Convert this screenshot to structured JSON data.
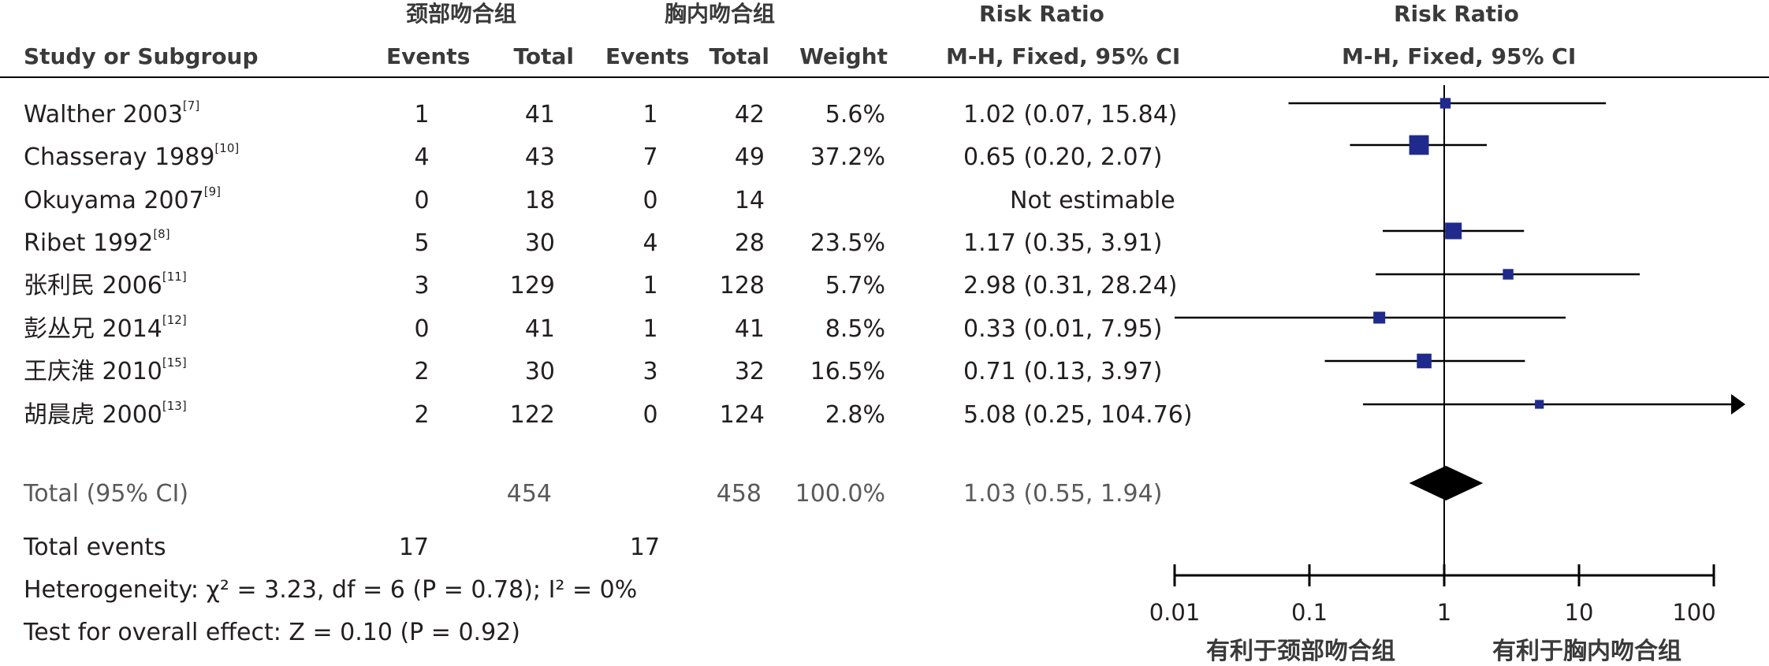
{
  "headers": {
    "group_neck": "颈部吻合组",
    "group_chest": "胸内吻合组",
    "risk_ratio_left": "Risk Ratio",
    "risk_ratio_right": "Risk Ratio",
    "study_col": "Study or Subgroup",
    "events1": "Events",
    "total1": "Total",
    "events2": "Events",
    "total2": "Total",
    "weight": "Weight",
    "method_left": "M-H, Fixed, 95% CI",
    "method_right": "M-H, Fixed, 95% CI"
  },
  "studies": [
    {
      "name": "Walther 2003",
      "ref": "[7]",
      "e1": "1",
      "t1": "41",
      "e2": "1",
      "t2": "42",
      "weight": "5.6%",
      "rr": "1.02 (0.07, 15.84)"
    },
    {
      "name": "Chasseray 1989",
      "ref": "[10]",
      "e1": "4",
      "t1": "43",
      "e2": "7",
      "t2": "49",
      "weight": "37.2%",
      "rr": "0.65 (0.20, 2.07)"
    },
    {
      "name": "Okuyama 2007",
      "ref": "[9]",
      "e1": "0",
      "t1": "18",
      "e2": "0",
      "t2": "14",
      "weight": "",
      "rr": "Not estimable"
    },
    {
      "name": "Ribet 1992",
      "ref": "[8]",
      "e1": "5",
      "t1": "30",
      "e2": "4",
      "t2": "28",
      "weight": "23.5%",
      "rr": "1.17 (0.35, 3.91)"
    },
    {
      "name": "张利民 2006",
      "ref": "[11]",
      "e1": "3",
      "t1": "129",
      "e2": "1",
      "t2": "128",
      "weight": "5.7%",
      "rr": "2.98 (0.31, 28.24)"
    },
    {
      "name": "彭丛兄 2014",
      "ref": "[12]",
      "e1": "0",
      "t1": "41",
      "e2": "1",
      "t2": "41",
      "weight": "8.5%",
      "rr": "0.33 (0.01, 7.95)"
    },
    {
      "name": "王庆淮 2010",
      "ref": "[15]",
      "e1": "2",
      "t1": "30",
      "e2": "3",
      "t2": "32",
      "weight": "16.5%",
      "rr": "0.71 (0.13, 3.97)"
    },
    {
      "name": "胡晨虎 2000",
      "ref": "[13]",
      "e1": "2",
      "t1": "122",
      "e2": "0",
      "t2": "124",
      "weight": "2.8%",
      "rr": "5.08 (0.25, 104.76)"
    }
  ],
  "total": {
    "label": "Total (95% CI)",
    "t1": "454",
    "t2": "458",
    "weight": "100.0%",
    "rr": "1.03 (0.55, 1.94)"
  },
  "total_events": {
    "label": "Total events",
    "e1": "17",
    "e2": "17"
  },
  "heterogeneity": "Heterogeneity: χ² = 3.23, df = 6 (P = 0.78); I² = 0%",
  "overall_effect": "Test for overall effect: Z = 0.10 (P = 0.92)",
  "axis": {
    "ticks": [
      "0.01",
      "0.1",
      "1",
      "10",
      "100"
    ],
    "favours_left": "有利于颈部吻合组",
    "favours_right": "有利于胸内吻合组"
  },
  "colors": {
    "marker": "#1f2a8c",
    "line": "#000000",
    "text": "#231f20",
    "header": "#3a3a3a",
    "muted": "#5a5a5a"
  },
  "chart_data": {
    "type": "forest",
    "scale": "log",
    "xlim": [
      0.01,
      100
    ],
    "ticks": [
      0.01,
      0.1,
      1,
      10,
      100
    ],
    "studies": [
      {
        "study": "Walther 2003",
        "rr": 1.02,
        "lo": 0.07,
        "hi": 15.84,
        "weight": 5.6
      },
      {
        "study": "Chasseray 1989",
        "rr": 0.65,
        "lo": 0.2,
        "hi": 2.07,
        "weight": 37.2
      },
      {
        "study": "Okuyama 2007",
        "rr": null,
        "lo": null,
        "hi": null,
        "weight": null
      },
      {
        "study": "Ribet 1992",
        "rr": 1.17,
        "lo": 0.35,
        "hi": 3.91,
        "weight": 23.5
      },
      {
        "study": "张利民 2006",
        "rr": 2.98,
        "lo": 0.31,
        "hi": 28.24,
        "weight": 5.7
      },
      {
        "study": "彭丛兄 2014",
        "rr": 0.33,
        "lo": 0.01,
        "hi": 7.95,
        "weight": 8.5
      },
      {
        "study": "王庆淮 2010",
        "rr": 0.71,
        "lo": 0.13,
        "hi": 3.97,
        "weight": 16.5
      },
      {
        "study": "胡晨虎 2000",
        "rr": 5.08,
        "lo": 0.25,
        "hi": 104.76,
        "weight": 2.8
      }
    ],
    "pooled": {
      "rr": 1.03,
      "lo": 0.55,
      "hi": 1.94
    }
  }
}
